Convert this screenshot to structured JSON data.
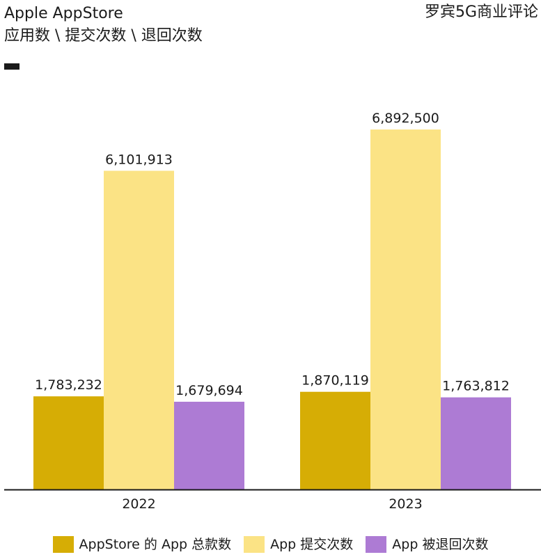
{
  "header": {
    "title_line1": "Apple AppStore",
    "title_line2": "应用数 \\ 提交次数 \\ 退回次数",
    "brand": "罗宾5G商业评论"
  },
  "chart_data": {
    "type": "bar",
    "categories": [
      "2022",
      "2023"
    ],
    "series": [
      {
        "name": "AppStore 的 App 总款数",
        "color": "#D6AD05",
        "values": [
          1783232,
          1870119
        ],
        "labels": [
          "1,783,232",
          "1,870,119"
        ]
      },
      {
        "name": "App 提交次数",
        "color": "#FBE385",
        "values": [
          6101913,
          6892500
        ],
        "labels": [
          "6,101,913",
          "6,892,500"
        ]
      },
      {
        "name": "App 被退回次数",
        "color": "#AD7BD4",
        "values": [
          1679694,
          1763812
        ],
        "labels": [
          "1,679,694",
          "1,763,812"
        ]
      }
    ],
    "ylim": [
      0,
      7500000
    ],
    "grid": false,
    "legend_position": "bottom"
  }
}
